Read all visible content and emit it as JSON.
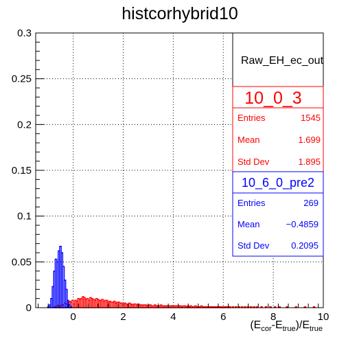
{
  "chart_data": {
    "type": "histogram",
    "title": "histcorhybrid10",
    "xlabel": {
      "base": "(E",
      "sub1": "cor",
      "mid": "-E",
      "sub2": "true",
      "close": ")/E",
      "sub3": "true"
    },
    "ylabel": "",
    "xlim": [
      -1.5,
      10
    ],
    "ylim": [
      0,
      0.3
    ],
    "x_ticks": [
      0,
      2,
      4,
      6,
      8,
      10
    ],
    "y_ticks": [
      0,
      0.05,
      0.1,
      0.15,
      0.2,
      0.25,
      0.3
    ],
    "x_tick_labels": [
      "0",
      "2",
      "4",
      "6",
      "8",
      "10"
    ],
    "y_tick_labels": [
      "0",
      "0.05",
      "0.1",
      "0.15",
      "0.2",
      "0.25",
      "0.3"
    ],
    "grid": true,
    "bin_width": 0.06,
    "stats_header": "Raw_EH_ec_out",
    "series": [
      {
        "name": "10_0_3",
        "color": "#ff0000",
        "entries": "1545",
        "mean": "1.699",
        "std_dev": "1.895",
        "bins": [
          [
            -0.78,
            0.001
          ],
          [
            -0.72,
            0.001
          ],
          [
            -0.66,
            0.002
          ],
          [
            -0.6,
            0.002
          ],
          [
            -0.54,
            0.002
          ],
          [
            -0.48,
            0.003
          ],
          [
            -0.42,
            0.003
          ],
          [
            -0.36,
            0.005
          ],
          [
            -0.3,
            0.004
          ],
          [
            -0.24,
            0.006
          ],
          [
            -0.18,
            0.007
          ],
          [
            -0.12,
            0.006
          ],
          [
            -0.06,
            0.008
          ],
          [
            0.0,
            0.004
          ],
          [
            0.06,
            0.008
          ],
          [
            0.12,
            0.007
          ],
          [
            0.18,
            0.01
          ],
          [
            0.24,
            0.009
          ],
          [
            0.3,
            0.01
          ],
          [
            0.36,
            0.012
          ],
          [
            0.42,
            0.011
          ],
          [
            0.48,
            0.009
          ],
          [
            0.54,
            0.01
          ],
          [
            0.6,
            0.008
          ],
          [
            0.66,
            0.011
          ],
          [
            0.72,
            0.01
          ],
          [
            0.78,
            0.009
          ],
          [
            0.84,
            0.008
          ],
          [
            0.9,
            0.01
          ],
          [
            0.96,
            0.009
          ],
          [
            1.02,
            0.008
          ],
          [
            1.08,
            0.008
          ],
          [
            1.14,
            0.009
          ],
          [
            1.2,
            0.007
          ],
          [
            1.26,
            0.008
          ],
          [
            1.32,
            0.008
          ],
          [
            1.38,
            0.006
          ],
          [
            1.44,
            0.007
          ],
          [
            1.5,
            0.006
          ],
          [
            1.56,
            0.006
          ],
          [
            1.62,
            0.007
          ],
          [
            1.68,
            0.005
          ],
          [
            1.74,
            0.006
          ],
          [
            1.8,
            0.006
          ],
          [
            1.86,
            0.005
          ],
          [
            1.92,
            0.005
          ],
          [
            1.98,
            0.004
          ],
          [
            2.04,
            0.005
          ],
          [
            2.1,
            0.004
          ],
          [
            2.16,
            0.004
          ],
          [
            2.22,
            0.005
          ],
          [
            2.28,
            0.004
          ],
          [
            2.34,
            0.003
          ],
          [
            2.4,
            0.004
          ],
          [
            2.46,
            0.004
          ],
          [
            2.52,
            0.003
          ],
          [
            2.58,
            0.004
          ],
          [
            2.64,
            0.003
          ],
          [
            2.7,
            0.003
          ],
          [
            2.76,
            0.003
          ],
          [
            2.82,
            0.003
          ],
          [
            2.88,
            0.003
          ],
          [
            2.94,
            0.002
          ],
          [
            3.0,
            0.003
          ],
          [
            3.06,
            0.003
          ],
          [
            3.12,
            0.002
          ],
          [
            3.18,
            0.002
          ],
          [
            3.24,
            0.003
          ],
          [
            3.3,
            0.002
          ],
          [
            3.36,
            0.002
          ],
          [
            3.42,
            0.002
          ],
          [
            3.48,
            0.003
          ],
          [
            3.54,
            0.002
          ],
          [
            3.6,
            0.002
          ],
          [
            3.66,
            0.002
          ],
          [
            3.72,
            0.002
          ],
          [
            3.78,
            0.002
          ],
          [
            3.84,
            0.002
          ],
          [
            3.9,
            0.002
          ],
          [
            3.96,
            0.002
          ],
          [
            4.02,
            0.002
          ],
          [
            4.08,
            0.002
          ],
          [
            4.14,
            0.002
          ],
          [
            4.2,
            0.002
          ],
          [
            4.26,
            0.002
          ],
          [
            4.32,
            0.001
          ],
          [
            4.38,
            0.002
          ],
          [
            4.44,
            0.002
          ],
          [
            4.5,
            0.001
          ],
          [
            4.56,
            0.002
          ],
          [
            4.62,
            0.001
          ],
          [
            4.68,
            0.002
          ],
          [
            4.74,
            0.001
          ],
          [
            4.8,
            0.001
          ],
          [
            4.86,
            0.002
          ],
          [
            4.92,
            0.001
          ],
          [
            4.98,
            0.001
          ],
          [
            5.04,
            0.001
          ],
          [
            5.1,
            0.002
          ],
          [
            5.16,
            0.001
          ],
          [
            5.22,
            0.001
          ],
          [
            5.28,
            0.001
          ],
          [
            5.34,
            0.001
          ],
          [
            5.4,
            0.001
          ],
          [
            5.46,
            0.001
          ],
          [
            5.52,
            0.001
          ],
          [
            5.58,
            0.001
          ],
          [
            5.64,
            0.001
          ],
          [
            5.7,
            0.001
          ],
          [
            5.76,
            0.001
          ],
          [
            5.82,
            0.001
          ],
          [
            5.88,
            0.001
          ],
          [
            5.94,
            0.001
          ],
          [
            6.0,
            0.001
          ],
          [
            6.06,
            0.001
          ],
          [
            6.12,
            0.001
          ],
          [
            6.18,
            0.001
          ],
          [
            6.24,
            0.001
          ],
          [
            6.36,
            0.001
          ],
          [
            6.48,
            0.001
          ],
          [
            6.6,
            0.001
          ],
          [
            6.72,
            0.001
          ],
          [
            6.84,
            0.001
          ],
          [
            6.96,
            0.001
          ],
          [
            7.08,
            0.001
          ],
          [
            7.2,
            0.001
          ],
          [
            7.32,
            0.001
          ],
          [
            7.5,
            0.001
          ],
          [
            7.68,
            0.001
          ],
          [
            7.86,
            0.001
          ],
          [
            8.04,
            0.001
          ],
          [
            8.22,
            0.001
          ],
          [
            8.52,
            0.001
          ],
          [
            8.88,
            0.001
          ],
          [
            9.24,
            0.001
          ],
          [
            9.6,
            0.001
          ]
        ]
      },
      {
        "name": "10_6_0_pre2",
        "color": "#0000ff",
        "entries": "269",
        "mean": "−0.4859",
        "std_dev": "0.2095",
        "bins": [
          [
            -1.02,
            0.001
          ],
          [
            -0.96,
            0.003
          ],
          [
            -0.9,
            0.01
          ],
          [
            -0.84,
            0.023
          ],
          [
            -0.78,
            0.04
          ],
          [
            -0.72,
            0.053
          ],
          [
            -0.66,
            0.05
          ],
          [
            -0.6,
            0.062
          ],
          [
            -0.54,
            0.067
          ],
          [
            -0.48,
            0.06
          ],
          [
            -0.42,
            0.045
          ],
          [
            -0.36,
            0.03
          ],
          [
            -0.3,
            0.02
          ],
          [
            -0.24,
            0.008
          ],
          [
            -0.18,
            0.003
          ],
          [
            -0.12,
            0.001
          ]
        ]
      }
    ]
  }
}
